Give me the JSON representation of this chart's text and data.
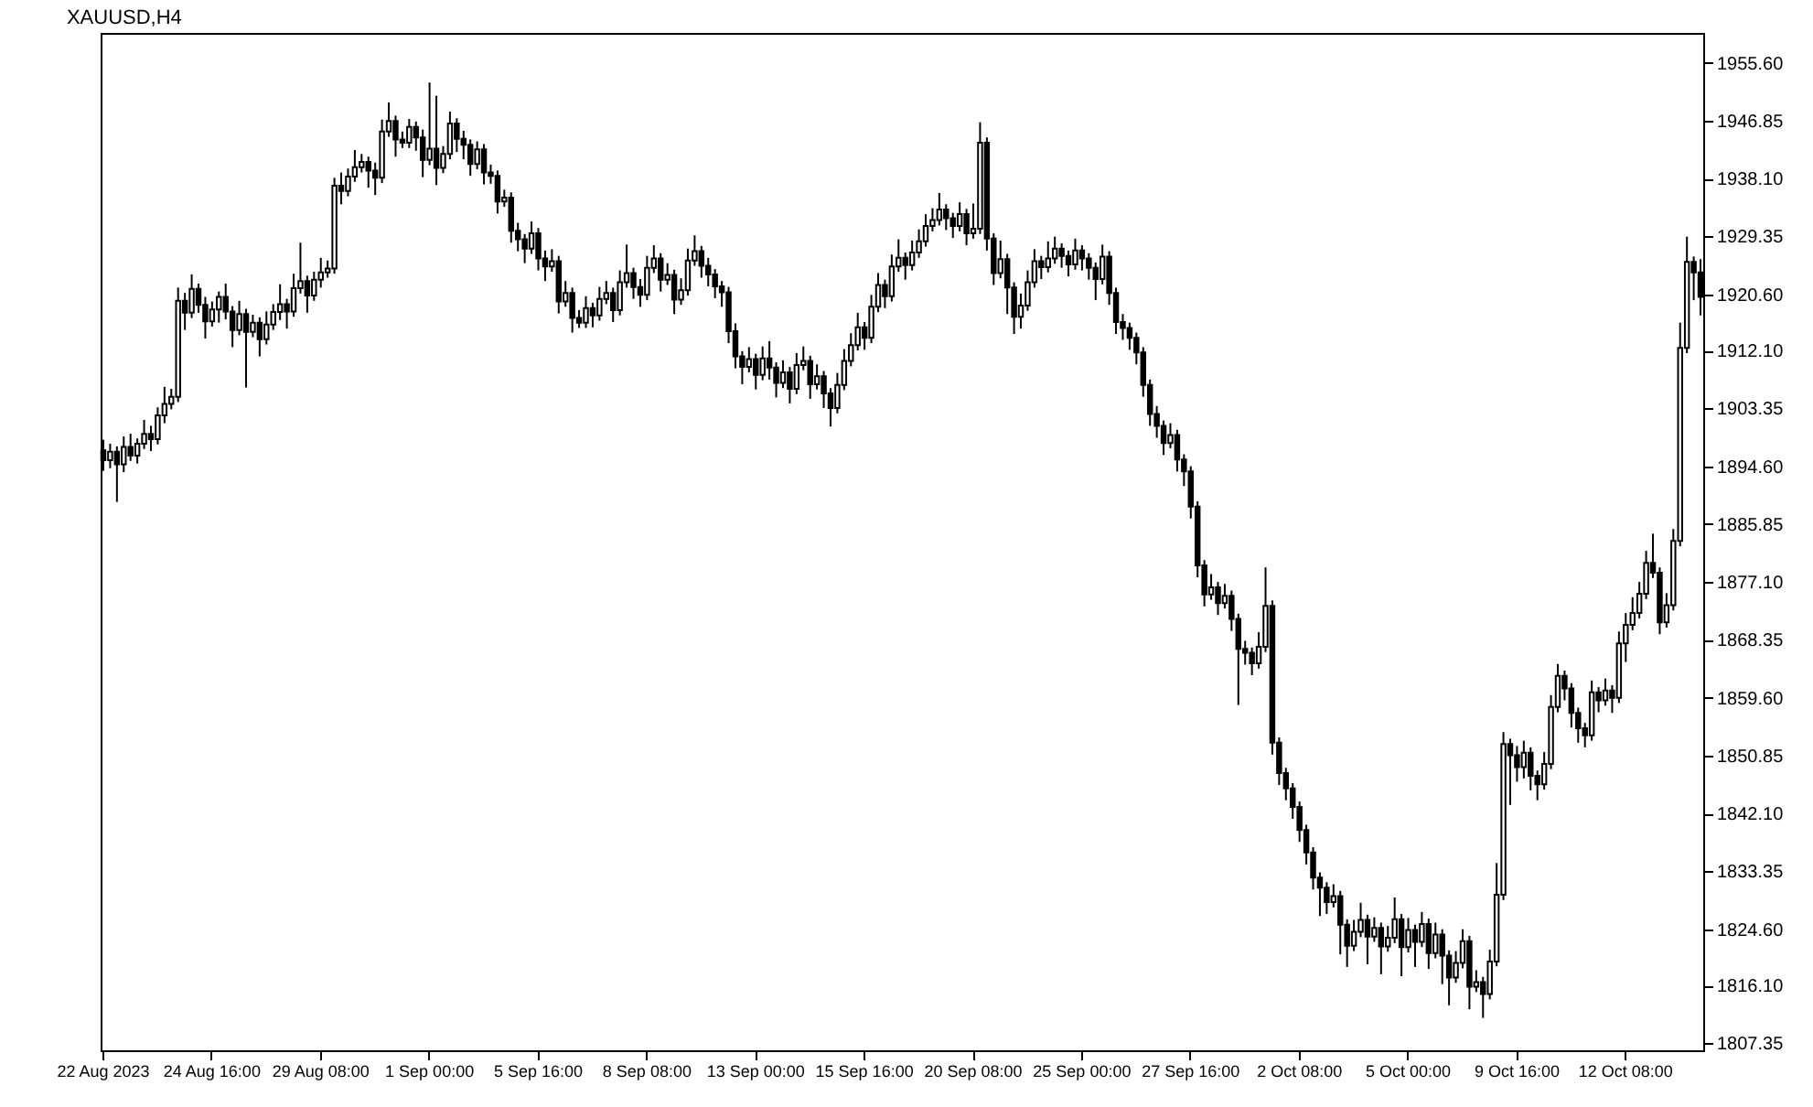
{
  "chart_data": {
    "type": "candlestick",
    "title": "XAUUSD,H4",
    "categories": [
      "22 Aug 2023",
      null,
      null,
      null,
      null,
      null,
      null,
      null,
      null,
      null,
      null,
      null,
      null,
      null,
      null,
      null,
      "24 Aug 16:00",
      null,
      null,
      null,
      null,
      null,
      null,
      null,
      null,
      null,
      null,
      null,
      null,
      null,
      null,
      null,
      "29 Aug 08:00",
      null,
      null,
      null,
      null,
      null,
      null,
      null,
      null,
      null,
      null,
      null,
      null,
      null,
      null,
      null,
      "1 Sep 00:00",
      null,
      null,
      null,
      null,
      null,
      null,
      null,
      null,
      null,
      null,
      null,
      null,
      null,
      null,
      null,
      "5 Sep 16:00",
      null,
      null,
      null,
      null,
      null,
      null,
      null,
      null,
      null,
      null,
      null,
      null,
      null,
      null,
      null,
      "8 Sep 08:00",
      null,
      null,
      null,
      null,
      null,
      null,
      null,
      null,
      null,
      null,
      null,
      null,
      null,
      null,
      null,
      "13 Sep 00:00",
      null,
      null,
      null,
      null,
      null,
      null,
      null,
      null,
      null,
      null,
      null,
      null,
      null,
      null,
      null,
      "15 Sep 16:00",
      null,
      null,
      null,
      null,
      null,
      null,
      null,
      null,
      null,
      null,
      null,
      null,
      null,
      null,
      null,
      "20 Sep 08:00",
      null,
      null,
      null,
      null,
      null,
      null,
      null,
      null,
      null,
      null,
      null,
      null,
      null,
      null,
      null,
      "25 Sep 00:00",
      null,
      null,
      null,
      null,
      null,
      null,
      null,
      null,
      null,
      null,
      null,
      null,
      null,
      null,
      null,
      "27 Sep 16:00",
      null,
      null,
      null,
      null,
      null,
      null,
      null,
      null,
      null,
      null,
      null,
      null,
      null,
      null,
      null,
      "2 Oct 08:00",
      null,
      null,
      null,
      null,
      null,
      null,
      null,
      null,
      null,
      null,
      null,
      null,
      null,
      null,
      null,
      "5 Oct 00:00",
      null,
      null,
      null,
      null,
      null,
      null,
      null,
      null,
      null,
      null,
      null,
      null,
      null,
      null,
      null,
      "9 Oct 16:00",
      null,
      null,
      null,
      null,
      null,
      null,
      null,
      null,
      null,
      null,
      null,
      null,
      null,
      null,
      null,
      "12 Oct 08:00",
      null,
      null,
      null,
      null,
      null,
      null,
      null,
      null,
      null,
      null,
      null
    ],
    "series": [
      {
        "color": "#000000",
        "ohlc": [
          [
            1897.0,
            1898.6,
            1893.9,
            1895.5
          ],
          [
            1895.5,
            1898.0,
            1894.3,
            1896.8
          ],
          [
            1896.8,
            1897.6,
            1889.2,
            1894.9
          ],
          [
            1894.9,
            1899.1,
            1893.7,
            1897.5
          ],
          [
            1897.5,
            1899.5,
            1895.4,
            1896.2
          ],
          [
            1896.2,
            1898.8,
            1895.0,
            1898.0
          ],
          [
            1898.0,
            1901.6,
            1897.2,
            1899.5
          ],
          [
            1899.5,
            1900.7,
            1896.9,
            1898.7
          ],
          [
            1898.7,
            1903.5,
            1897.9,
            1902.3
          ],
          [
            1902.3,
            1906.6,
            1901.1,
            1904.0
          ],
          [
            1904.0,
            1906.3,
            1903.2,
            1905.1
          ],
          [
            1905.1,
            1921.6,
            1904.3,
            1919.6
          ],
          [
            1919.6,
            1920.8,
            1915.2,
            1917.8
          ],
          [
            1917.8,
            1923.6,
            1917.0,
            1921.4
          ],
          [
            1921.4,
            1922.2,
            1917.8,
            1919.0
          ],
          [
            1919.0,
            1920.2,
            1913.9,
            1916.5
          ],
          [
            1916.5,
            1919.5,
            1915.7,
            1918.3
          ],
          [
            1918.3,
            1921.0,
            1916.3,
            1920.2
          ],
          [
            1920.2,
            1922.2,
            1916.8,
            1918.0
          ],
          [
            1918.0,
            1918.8,
            1912.6,
            1915.2
          ],
          [
            1915.2,
            1919.6,
            1914.4,
            1917.6
          ],
          [
            1917.6,
            1918.4,
            1906.5,
            1914.9
          ],
          [
            1914.9,
            1917.5,
            1914.1,
            1916.3
          ],
          [
            1916.3,
            1917.1,
            1911.2,
            1913.8
          ],
          [
            1913.8,
            1918.0,
            1913.0,
            1916.0
          ],
          [
            1916.0,
            1919.1,
            1915.2,
            1917.9
          ],
          [
            1917.9,
            1922.1,
            1916.7,
            1919.1
          ],
          [
            1919.1,
            1919.9,
            1915.4,
            1918.0
          ],
          [
            1918.0,
            1923.7,
            1917.2,
            1921.5
          ],
          [
            1921.5,
            1928.4,
            1920.7,
            1922.6
          ],
          [
            1922.6,
            1923.4,
            1917.8,
            1920.4
          ],
          [
            1920.4,
            1924.0,
            1919.6,
            1922.8
          ],
          [
            1922.8,
            1926.1,
            1921.6,
            1923.9
          ],
          [
            1923.9,
            1925.7,
            1923.1,
            1924.5
          ],
          [
            1924.5,
            1938.2,
            1923.7,
            1937.0
          ],
          [
            1937.0,
            1939.0,
            1934.2,
            1936.2
          ],
          [
            1936.2,
            1939.6,
            1935.4,
            1938.4
          ],
          [
            1938.4,
            1942.4,
            1937.6,
            1939.8
          ],
          [
            1939.8,
            1941.8,
            1939.0,
            1940.6
          ],
          [
            1940.6,
            1941.4,
            1936.7,
            1939.3
          ],
          [
            1939.3,
            1940.5,
            1935.6,
            1938.2
          ],
          [
            1938.2,
            1947.0,
            1937.4,
            1945.2
          ],
          [
            1945.2,
            1949.6,
            1944.4,
            1946.8
          ],
          [
            1946.8,
            1947.6,
            1941.4,
            1944.0
          ],
          [
            1944.0,
            1945.2,
            1942.7,
            1943.5
          ],
          [
            1943.5,
            1947.1,
            1942.7,
            1945.9
          ],
          [
            1945.9,
            1946.7,
            1942.3,
            1944.3
          ],
          [
            1944.3,
            1945.5,
            1938.3,
            1940.9
          ],
          [
            1940.9,
            1952.6,
            1940.1,
            1942.6
          ],
          [
            1942.6,
            1950.6,
            1937.1,
            1939.7
          ],
          [
            1939.7,
            1943.0,
            1938.9,
            1941.8
          ],
          [
            1941.8,
            1948.2,
            1941.0,
            1946.4
          ],
          [
            1946.4,
            1947.2,
            1942.1,
            1944.1
          ],
          [
            1944.1,
            1945.3,
            1941.0,
            1943.2
          ],
          [
            1943.2,
            1944.0,
            1938.5,
            1940.3
          ],
          [
            1940.3,
            1943.7,
            1939.5,
            1942.5
          ],
          [
            1942.5,
            1943.3,
            1937.2,
            1939.0
          ],
          [
            1939.0,
            1940.2,
            1937.3,
            1938.5
          ],
          [
            1938.5,
            1939.3,
            1932.8,
            1934.6
          ],
          [
            1934.6,
            1936.4,
            1933.8,
            1935.2
          ],
          [
            1935.2,
            1936.0,
            1928.4,
            1930.2
          ],
          [
            1930.2,
            1931.4,
            1927.1,
            1928.9
          ],
          [
            1928.9,
            1929.7,
            1925.3,
            1927.5
          ],
          [
            1927.5,
            1931.6,
            1926.7,
            1929.8
          ],
          [
            1929.8,
            1930.6,
            1924.2,
            1926.0
          ],
          [
            1926.0,
            1927.2,
            1922.6,
            1924.8
          ],
          [
            1924.8,
            1927.4,
            1924.0,
            1925.6
          ],
          [
            1925.6,
            1926.4,
            1917.7,
            1919.5
          ],
          [
            1919.5,
            1922.6,
            1918.7,
            1920.8
          ],
          [
            1920.8,
            1921.6,
            1914.8,
            1917.0
          ],
          [
            1917.0,
            1918.2,
            1915.5,
            1916.3
          ],
          [
            1916.3,
            1920.3,
            1915.5,
            1918.5
          ],
          [
            1918.5,
            1919.3,
            1915.6,
            1917.4
          ],
          [
            1917.4,
            1921.7,
            1916.6,
            1919.9
          ],
          [
            1919.9,
            1922.6,
            1919.1,
            1920.8
          ],
          [
            1920.8,
            1921.6,
            1916.4,
            1918.2
          ],
          [
            1918.2,
            1924.2,
            1917.4,
            1922.4
          ],
          [
            1922.4,
            1928.1,
            1921.6,
            1923.8
          ],
          [
            1923.8,
            1924.6,
            1919.9,
            1921.7
          ],
          [
            1921.7,
            1922.9,
            1918.7,
            1920.5
          ],
          [
            1920.5,
            1926.4,
            1919.7,
            1924.6
          ],
          [
            1924.6,
            1928.0,
            1923.8,
            1926.0
          ],
          [
            1926.0,
            1926.8,
            1921.0,
            1922.8
          ],
          [
            1922.8,
            1925.3,
            1922.0,
            1923.5
          ],
          [
            1923.5,
            1924.3,
            1917.6,
            1919.8
          ],
          [
            1919.8,
            1923.0,
            1919.0,
            1921.2
          ],
          [
            1921.2,
            1927.5,
            1920.4,
            1925.7
          ],
          [
            1925.7,
            1929.5,
            1924.9,
            1927.1
          ],
          [
            1927.1,
            1927.9,
            1923.1,
            1924.9
          ],
          [
            1924.9,
            1926.1,
            1921.8,
            1923.6
          ],
          [
            1923.6,
            1924.4,
            1920.0,
            1921.8
          ],
          [
            1921.8,
            1922.6,
            1918.7,
            1920.9
          ],
          [
            1920.9,
            1921.7,
            1913.2,
            1915.0
          ],
          [
            1915.0,
            1916.2,
            1909.4,
            1911.2
          ],
          [
            1911.2,
            1912.0,
            1907.0,
            1909.6
          ],
          [
            1909.6,
            1912.6,
            1908.8,
            1910.8
          ],
          [
            1910.8,
            1911.6,
            1906.2,
            1908.4
          ],
          [
            1908.4,
            1912.7,
            1907.6,
            1910.9
          ],
          [
            1910.9,
            1913.5,
            1907.7,
            1909.5
          ],
          [
            1909.5,
            1910.3,
            1905.0,
            1907.2
          ],
          [
            1907.2,
            1910.6,
            1906.4,
            1908.8
          ],
          [
            1908.8,
            1909.6,
            1904.1,
            1906.3
          ],
          [
            1906.3,
            1911.7,
            1905.5,
            1909.9
          ],
          [
            1909.9,
            1912.7,
            1909.1,
            1910.5
          ],
          [
            1910.5,
            1911.3,
            1904.8,
            1907.0
          ],
          [
            1907.0,
            1910.0,
            1906.2,
            1908.2
          ],
          [
            1908.2,
            1909.0,
            1903.4,
            1905.6
          ],
          [
            1905.6,
            1906.4,
            1900.6,
            1903.4
          ],
          [
            1903.4,
            1908.7,
            1902.6,
            1906.9
          ],
          [
            1906.9,
            1912.3,
            1906.1,
            1910.5
          ],
          [
            1910.5,
            1914.7,
            1909.7,
            1912.9
          ],
          [
            1912.9,
            1917.8,
            1912.1,
            1915.6
          ],
          [
            1915.6,
            1916.4,
            1912.2,
            1914.0
          ],
          [
            1914.0,
            1920.5,
            1913.2,
            1918.7
          ],
          [
            1918.7,
            1923.8,
            1917.9,
            1922.0
          ],
          [
            1922.0,
            1922.8,
            1918.5,
            1920.3
          ],
          [
            1920.3,
            1926.6,
            1919.5,
            1924.8
          ],
          [
            1924.8,
            1928.9,
            1924.0,
            1926.1
          ],
          [
            1926.1,
            1926.9,
            1922.8,
            1925.0
          ],
          [
            1925.0,
            1928.7,
            1924.2,
            1926.9
          ],
          [
            1926.9,
            1930.4,
            1926.1,
            1928.6
          ],
          [
            1928.6,
            1932.7,
            1927.8,
            1930.9
          ],
          [
            1930.9,
            1933.6,
            1930.1,
            1931.8
          ],
          [
            1931.8,
            1935.9,
            1931.0,
            1933.4
          ],
          [
            1933.4,
            1934.2,
            1930.3,
            1932.1
          ],
          [
            1932.1,
            1932.9,
            1929.1,
            1930.9
          ],
          [
            1930.9,
            1934.5,
            1930.1,
            1932.7
          ],
          [
            1932.7,
            1933.5,
            1928.0,
            1929.8
          ],
          [
            1929.8,
            1934.3,
            1929.0,
            1930.5
          ],
          [
            1930.5,
            1946.6,
            1929.7,
            1943.5
          ],
          [
            1943.5,
            1944.3,
            1927.2,
            1929.0
          ],
          [
            1929.0,
            1929.8,
            1922.0,
            1923.8
          ],
          [
            1923.8,
            1928.7,
            1923.0,
            1925.9
          ],
          [
            1925.9,
            1926.7,
            1917.6,
            1921.6
          ],
          [
            1921.6,
            1922.4,
            1914.6,
            1917.2
          ],
          [
            1917.2,
            1920.7,
            1915.4,
            1918.9
          ],
          [
            1918.9,
            1924.2,
            1918.1,
            1922.4
          ],
          [
            1922.4,
            1927.4,
            1921.6,
            1925.6
          ],
          [
            1925.6,
            1926.4,
            1922.9,
            1924.7
          ],
          [
            1924.7,
            1928.6,
            1923.9,
            1926.0
          ],
          [
            1926.0,
            1929.3,
            1925.2,
            1927.5
          ],
          [
            1927.5,
            1928.3,
            1924.6,
            1926.4
          ],
          [
            1926.4,
            1927.2,
            1923.3,
            1925.1
          ],
          [
            1925.1,
            1929.0,
            1924.3,
            1927.2
          ],
          [
            1927.2,
            1928.0,
            1924.2,
            1926.0
          ],
          [
            1926.0,
            1926.8,
            1922.8,
            1924.6
          ],
          [
            1924.6,
            1925.4,
            1919.7,
            1922.9
          ],
          [
            1922.9,
            1928.1,
            1922.1,
            1926.3
          ],
          [
            1926.3,
            1927.1,
            1919.0,
            1920.8
          ],
          [
            1920.8,
            1921.6,
            1914.6,
            1916.4
          ],
          [
            1916.4,
            1917.6,
            1913.7,
            1915.5
          ],
          [
            1915.5,
            1916.3,
            1912.2,
            1914.0
          ],
          [
            1914.0,
            1914.8,
            1910.0,
            1911.8
          ],
          [
            1911.8,
            1912.6,
            1905.1,
            1906.9
          ],
          [
            1906.9,
            1907.7,
            1900.7,
            1902.5
          ],
          [
            1902.5,
            1903.7,
            1898.9,
            1900.7
          ],
          [
            1900.7,
            1901.5,
            1896.3,
            1898.1
          ],
          [
            1898.1,
            1901.1,
            1897.3,
            1899.3
          ],
          [
            1899.3,
            1900.1,
            1893.8,
            1895.6
          ],
          [
            1895.6,
            1896.4,
            1891.6,
            1893.8
          ],
          [
            1893.8,
            1894.6,
            1886.7,
            1888.5
          ],
          [
            1888.5,
            1889.3,
            1877.8,
            1879.6
          ],
          [
            1879.6,
            1880.4,
            1873.4,
            1875.2
          ],
          [
            1875.2,
            1878.3,
            1874.4,
            1876.3
          ],
          [
            1876.3,
            1877.1,
            1872.1,
            1873.9
          ],
          [
            1873.9,
            1876.8,
            1873.1,
            1875.0
          ],
          [
            1875.0,
            1875.8,
            1869.7,
            1871.5
          ],
          [
            1871.5,
            1872.3,
            1858.5,
            1867.0
          ],
          [
            1867.0,
            1868.2,
            1864.6,
            1866.4
          ],
          [
            1866.4,
            1867.2,
            1863.0,
            1864.8
          ],
          [
            1864.8,
            1869.5,
            1864.0,
            1867.3
          ],
          [
            1867.3,
            1879.3,
            1866.5,
            1873.5
          ],
          [
            1873.5,
            1874.3,
            1851.0,
            1852.8
          ],
          [
            1852.8,
            1853.6,
            1846.4,
            1848.2
          ],
          [
            1848.2,
            1849.0,
            1844.1,
            1845.9
          ],
          [
            1845.9,
            1846.7,
            1841.3,
            1843.1
          ],
          [
            1843.1,
            1843.9,
            1837.8,
            1839.6
          ],
          [
            1839.6,
            1840.4,
            1834.4,
            1836.2
          ],
          [
            1836.2,
            1837.0,
            1830.6,
            1832.4
          ],
          [
            1832.4,
            1833.2,
            1826.6,
            1830.9
          ],
          [
            1830.9,
            1831.7,
            1826.9,
            1828.7
          ],
          [
            1828.7,
            1831.4,
            1827.9,
            1829.6
          ],
          [
            1829.6,
            1830.4,
            1820.8,
            1825.3
          ],
          [
            1825.3,
            1826.1,
            1818.9,
            1822.1
          ],
          [
            1822.1,
            1826.0,
            1821.3,
            1824.2
          ],
          [
            1824.2,
            1828.6,
            1823.4,
            1826.0
          ],
          [
            1826.0,
            1826.8,
            1819.3,
            1823.5
          ],
          [
            1823.5,
            1826.4,
            1822.7,
            1824.8
          ],
          [
            1824.8,
            1825.6,
            1817.8,
            1822.0
          ],
          [
            1822.0,
            1825.1,
            1821.2,
            1823.3
          ],
          [
            1823.3,
            1829.4,
            1822.5,
            1826.1
          ],
          [
            1826.1,
            1826.9,
            1817.5,
            1821.9
          ],
          [
            1821.9,
            1826.3,
            1821.1,
            1824.5
          ],
          [
            1824.5,
            1825.3,
            1818.9,
            1822.7
          ],
          [
            1822.7,
            1827.2,
            1821.9,
            1825.4
          ],
          [
            1825.4,
            1826.2,
            1818.6,
            1821.0
          ],
          [
            1821.0,
            1825.6,
            1820.2,
            1823.8
          ],
          [
            1823.8,
            1824.6,
            1816.3,
            1820.6
          ],
          [
            1820.6,
            1821.4,
            1813.1,
            1817.3
          ],
          [
            1817.3,
            1821.3,
            1816.5,
            1819.5
          ],
          [
            1819.5,
            1824.6,
            1818.7,
            1822.8
          ],
          [
            1822.8,
            1823.6,
            1812.5,
            1815.9
          ],
          [
            1815.9,
            1818.4,
            1815.1,
            1816.6
          ],
          [
            1816.6,
            1817.4,
            1811.2,
            1814.8
          ],
          [
            1814.8,
            1821.5,
            1814.0,
            1819.7
          ],
          [
            1819.7,
            1834.6,
            1819.0,
            1829.8
          ],
          [
            1829.8,
            1854.4,
            1829.0,
            1852.6
          ],
          [
            1852.6,
            1853.4,
            1843.4,
            1850.9
          ],
          [
            1850.9,
            1852.3,
            1846.9,
            1849.1
          ],
          [
            1849.1,
            1853.1,
            1847.4,
            1851.3
          ],
          [
            1851.3,
            1852.1,
            1845.6,
            1847.8
          ],
          [
            1847.8,
            1848.6,
            1844.1,
            1846.5
          ],
          [
            1846.5,
            1851.4,
            1845.7,
            1849.6
          ],
          [
            1849.6,
            1860.0,
            1848.8,
            1858.2
          ],
          [
            1858.2,
            1864.7,
            1857.4,
            1862.9
          ],
          [
            1862.9,
            1863.7,
            1859.2,
            1861.0
          ],
          [
            1861.0,
            1861.8,
            1855.1,
            1857.3
          ],
          [
            1857.3,
            1858.1,
            1852.8,
            1855.0
          ],
          [
            1855.0,
            1855.8,
            1852.1,
            1853.9
          ],
          [
            1853.9,
            1862.2,
            1853.1,
            1860.4
          ],
          [
            1860.4,
            1861.2,
            1857.4,
            1859.2
          ],
          [
            1859.2,
            1862.5,
            1858.4,
            1860.7
          ],
          [
            1860.7,
            1861.5,
            1857.3,
            1859.6
          ],
          [
            1859.6,
            1869.6,
            1858.8,
            1867.8
          ],
          [
            1867.8,
            1872.4,
            1865.0,
            1870.6
          ],
          [
            1870.6,
            1874.8,
            1869.8,
            1872.4
          ],
          [
            1872.4,
            1877.1,
            1871.6,
            1875.3
          ],
          [
            1875.3,
            1881.8,
            1874.5,
            1880.0
          ],
          [
            1880.0,
            1884.4,
            1877.7,
            1878.5
          ],
          [
            1878.5,
            1879.3,
            1869.2,
            1871.0
          ],
          [
            1871.0,
            1875.4,
            1870.2,
            1873.6
          ],
          [
            1873.6,
            1885.1,
            1872.8,
            1883.3
          ],
          [
            1883.3,
            1916.3,
            1882.5,
            1912.5
          ],
          [
            1912.5,
            1929.3,
            1911.7,
            1925.5
          ],
          [
            1925.5,
            1926.3,
            1919.7,
            1923.9
          ],
          [
            1923.9,
            1925.9,
            1917.4,
            1920.2
          ]
        ]
      }
    ],
    "ylim": [
      1806.3,
      1960.1
    ],
    "yticks": [
      {
        "value": 1807.35,
        "label": "1807.35"
      },
      {
        "value": 1816.1,
        "label": "1816.10"
      },
      {
        "value": 1824.6,
        "label": "1824.60"
      },
      {
        "value": 1833.35,
        "label": "1833.35"
      },
      {
        "value": 1842.1,
        "label": "1842.10"
      },
      {
        "value": 1850.85,
        "label": "1850.85"
      },
      {
        "value": 1859.6,
        "label": "1859.60"
      },
      {
        "value": 1868.35,
        "label": "1868.35"
      },
      {
        "value": 1877.1,
        "label": "1877.10"
      },
      {
        "value": 1885.85,
        "label": "1885.85"
      },
      {
        "value": 1894.6,
        "label": "1894.60"
      },
      {
        "value": 1903.35,
        "label": "1903.35"
      },
      {
        "value": 1912.1,
        "label": "1912.10"
      },
      {
        "value": 1920.6,
        "label": "1920.60"
      },
      {
        "value": 1929.35,
        "label": "1929.35"
      },
      {
        "value": 1938.1,
        "label": "1938.10"
      },
      {
        "value": 1946.85,
        "label": "1946.85"
      },
      {
        "value": 1955.6,
        "label": "1955.60"
      }
    ]
  }
}
